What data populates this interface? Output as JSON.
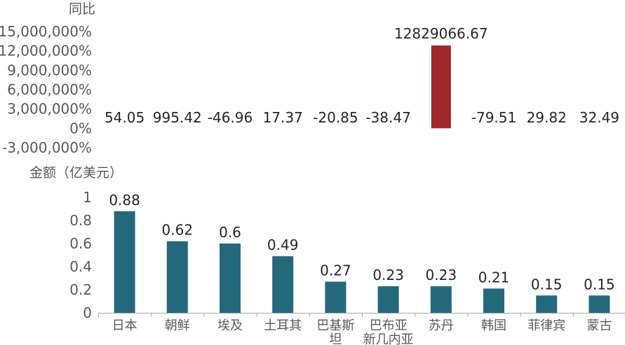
{
  "chart_data": [
    {
      "type": "bar",
      "ylabel": "同比",
      "yticks": [
        "15,000,000%",
        "12,000,000%",
        "9,000,000%",
        "6,000,000%",
        "3,000,000%",
        "0%",
        "-3,000,000%"
      ],
      "ylim": [
        -3000000,
        15000000
      ],
      "categories": [
        "日本",
        "朝鲜",
        "埃及",
        "土耳其",
        "巴基斯坦",
        "巴布亚新几内亚",
        "苏丹",
        "韩国",
        "菲律宾",
        "蒙古"
      ],
      "values": [
        54.05,
        995.42,
        -46.96,
        17.37,
        -20.85,
        -38.47,
        12829066.67,
        -79.51,
        29.82,
        32.49
      ],
      "labels": [
        "54.05",
        "995.42",
        "-46.96",
        "17.37",
        "-20.85",
        "-38.47",
        "12829066.67",
        "-79.51",
        "29.82",
        "32.49"
      ],
      "color": "#a0282b"
    },
    {
      "type": "bar",
      "ylabel": "金额（亿美元）",
      "yticks": [
        "1",
        "0.8",
        "0.6",
        "0.4",
        "0.2",
        "0"
      ],
      "ylim": [
        0,
        1
      ],
      "categories": [
        "日本",
        "朝鲜",
        "埃及",
        "土耳其",
        "巴基斯坦",
        "巴布亚新几内亚",
        "苏丹",
        "韩国",
        "菲律宾",
        "蒙古"
      ],
      "category_lines": [
        [
          "日本"
        ],
        [
          "朝鲜"
        ],
        [
          "埃及"
        ],
        [
          "土耳其"
        ],
        [
          "巴基斯",
          "坦"
        ],
        [
          "巴布亚",
          "新几内亚"
        ],
        [
          "苏丹"
        ],
        [
          "韩国"
        ],
        [
          "菲律宾"
        ],
        [
          "蒙古"
        ]
      ],
      "values": [
        0.88,
        0.62,
        0.6,
        0.49,
        0.27,
        0.23,
        0.23,
        0.21,
        0.15,
        0.15
      ],
      "labels": [
        "0.88",
        "0.62",
        "0.6",
        "0.49",
        "0.27",
        "0.23",
        "0.23",
        "0.21",
        "0.15",
        "0.15"
      ],
      "color": "#24697b"
    }
  ]
}
